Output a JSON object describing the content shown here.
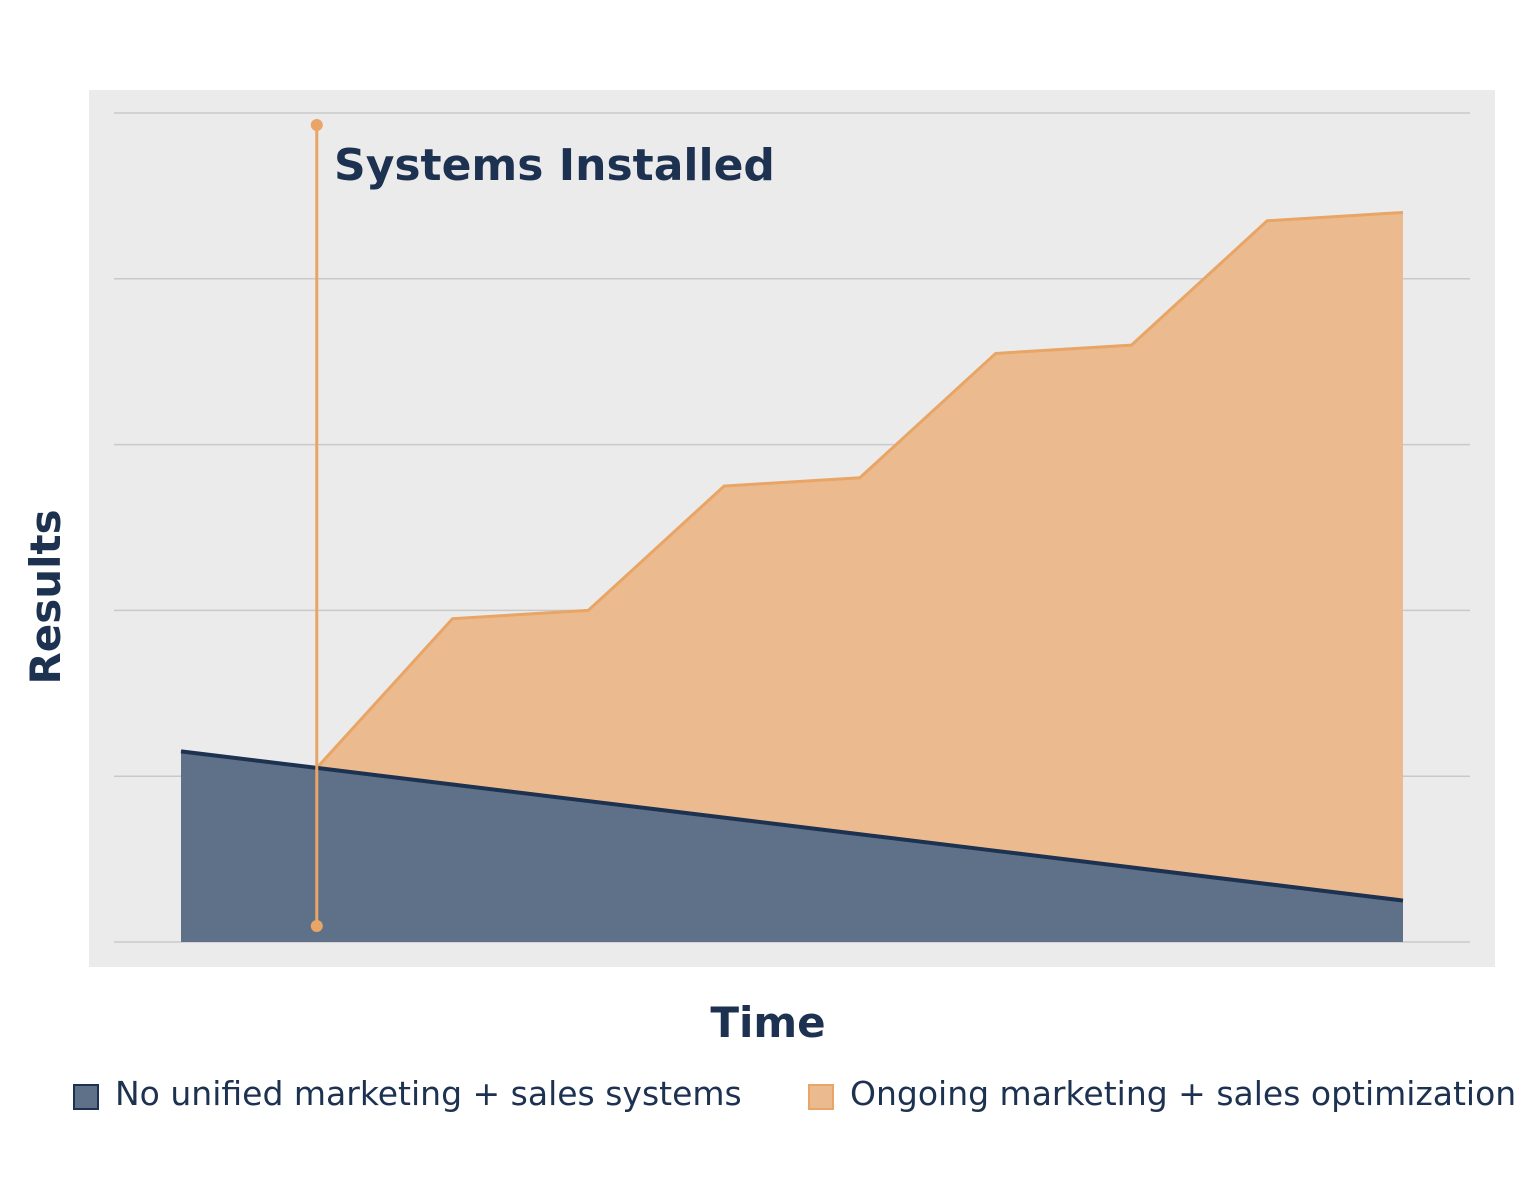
{
  "colors": {
    "background": "#ffffff",
    "plot_background": "#ebebeb",
    "grid": "#c9c9c9",
    "navy": "#1d3150",
    "blue_fill": "#5f7189",
    "orange_fill": "#ebbb8f",
    "orange_line": "#e8a565"
  },
  "chart_data": {
    "type": "area",
    "title": "",
    "xlabel": "Time",
    "ylabel": "Results",
    "grid": true,
    "legend_position": "bottom",
    "x": [
      0,
      1,
      2,
      3,
      4,
      5,
      6,
      7,
      8,
      9,
      10
    ],
    "xlim": [
      -0.5,
      10.5
    ],
    "ylim": [
      0,
      5
    ],
    "series": [
      {
        "name": "No unified marketing + sales systems",
        "values": [
          1.15,
          1.05,
          0.95,
          0.85,
          0.75,
          0.65,
          0.55,
          0.45,
          0.35,
          0.25,
          0.25
        ],
        "x": [
          0,
          1,
          2,
          3,
          4,
          5,
          6,
          7,
          8,
          9,
          9
        ],
        "color": "#5f7189"
      },
      {
        "name": "Ongoing marketing + sales optimization",
        "x": [
          1,
          2,
          3,
          4,
          5,
          6,
          7,
          8,
          9,
          9
        ],
        "values": [
          1.05,
          1.95,
          2.0,
          2.75,
          2.8,
          3.55,
          3.6,
          4.35,
          4.4,
          0.25
        ],
        "color": "#ebbb8f"
      }
    ],
    "annotations": [
      {
        "text": "Systems Installed",
        "x": 1
      }
    ]
  },
  "legend": {
    "items": [
      {
        "label": "No unified marketing + sales systems"
      },
      {
        "label": "Ongoing marketing + sales optimization"
      }
    ]
  }
}
